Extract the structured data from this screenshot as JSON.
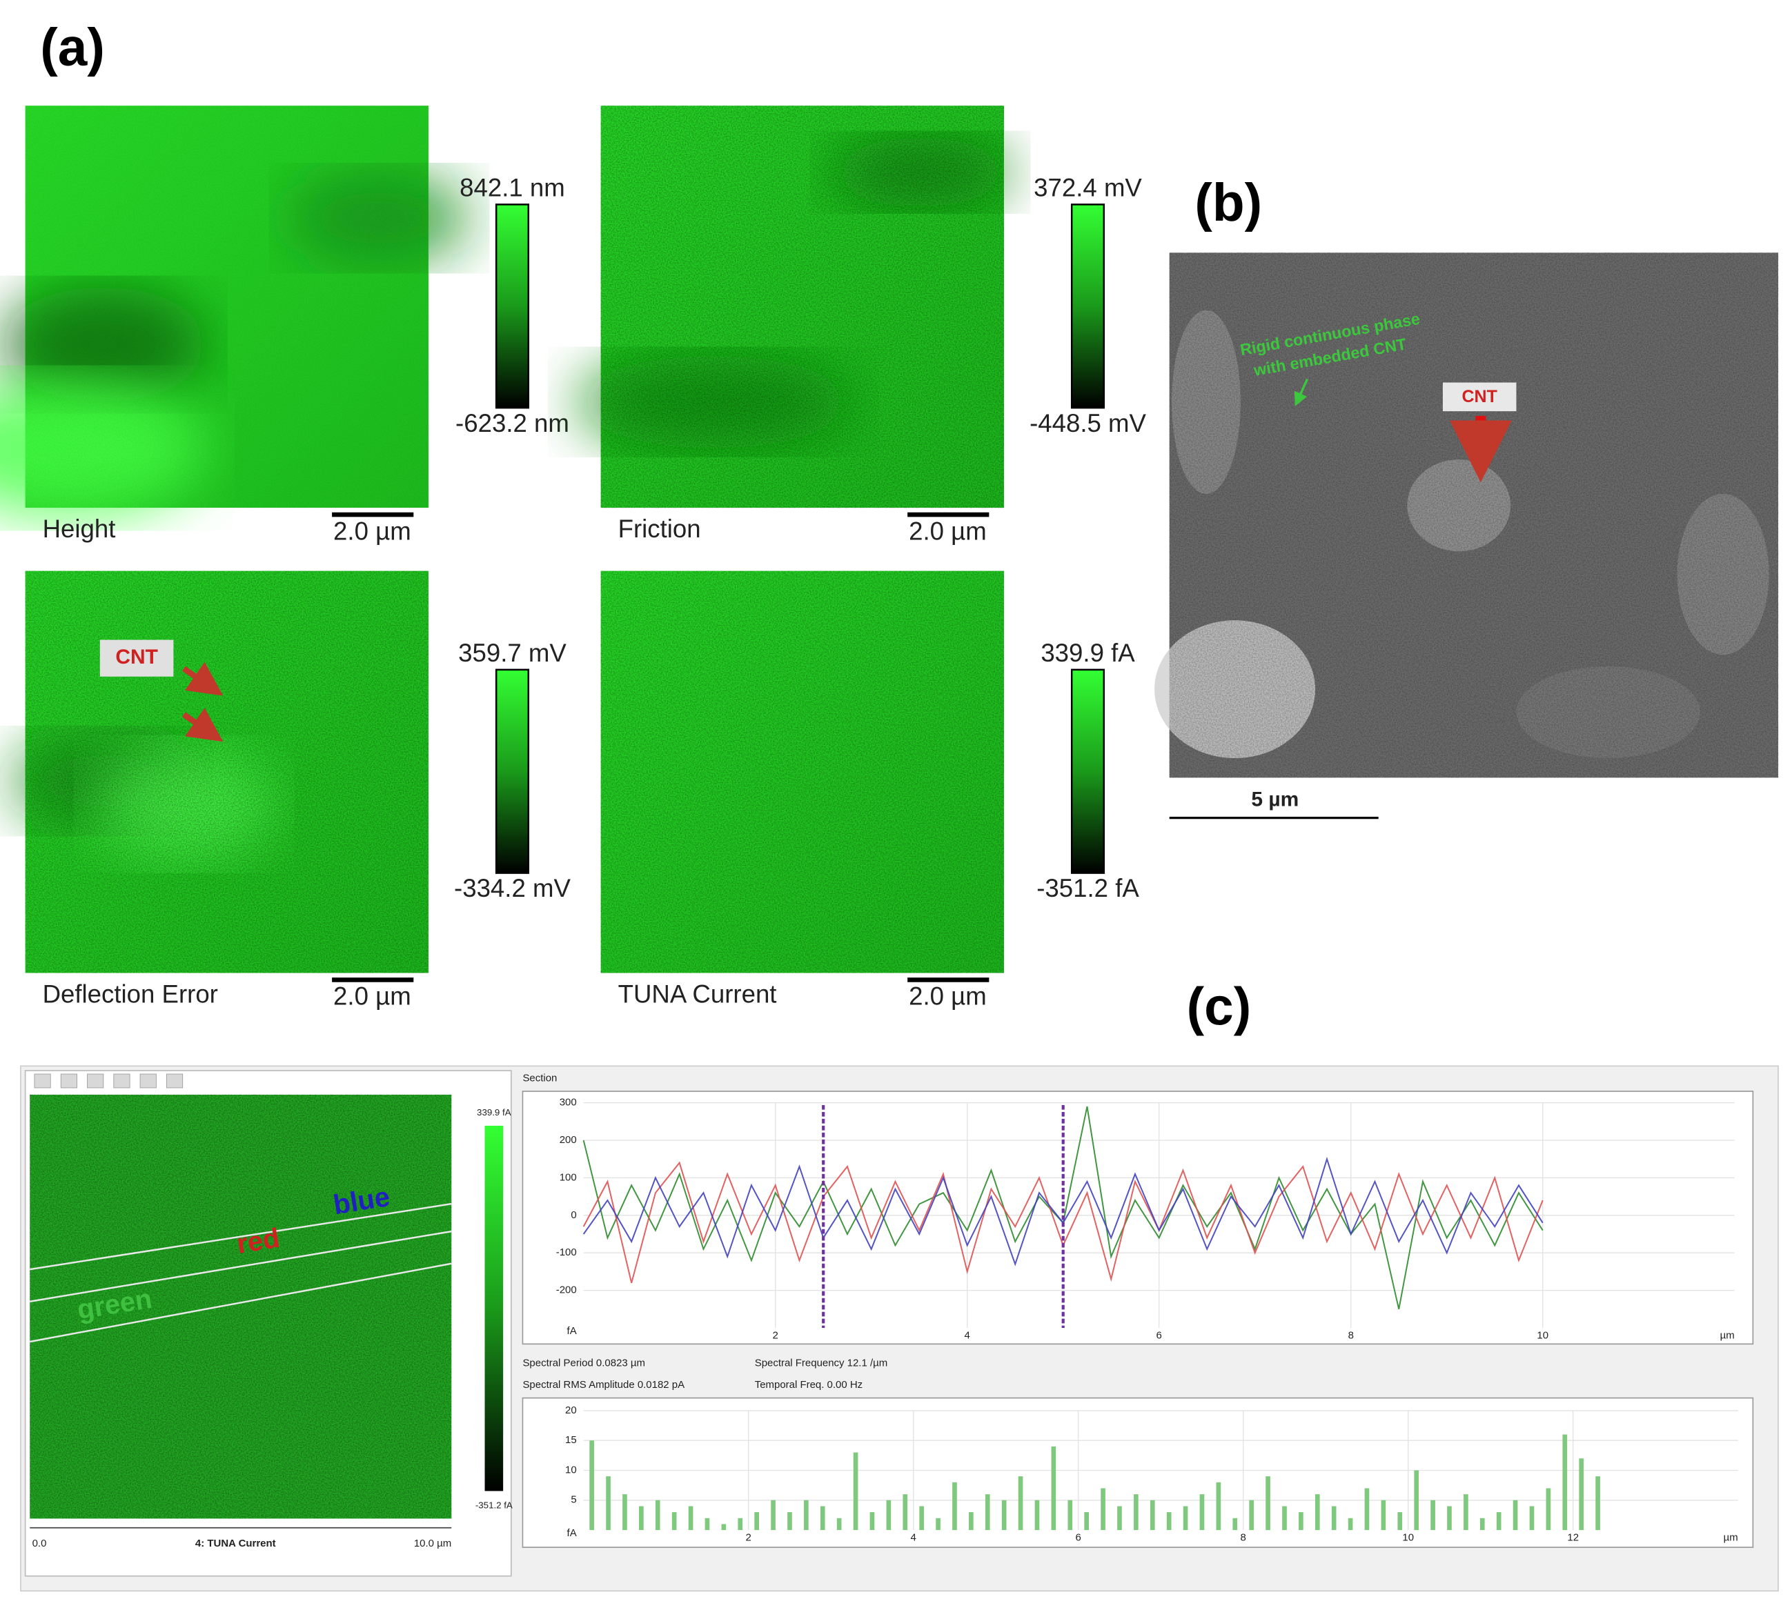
{
  "panel_a": {
    "label": "(a)",
    "images": [
      {
        "name": "Height",
        "max": "842.1 nm",
        "min": "-623.2 nm",
        "scale_bar": "2.0 µm"
      },
      {
        "name": "Friction",
        "max": "372.4 mV",
        "min": "-448.5 mV",
        "scale_bar": "2.0 µm"
      },
      {
        "name": "Deflection Error",
        "max": "359.7 mV",
        "min": "-334.2 mV",
        "scale_bar": "2.0 µm"
      },
      {
        "name": "TUNA Current",
        "max": "339.9 fA",
        "min": "-351.2 fA",
        "scale_bar": "2.0 µm"
      }
    ],
    "annotation": "CNT"
  },
  "panel_b": {
    "label": "(b)",
    "annotation_lines": [
      "Rigid continuous phase",
      "with embedded CNT"
    ],
    "cnt_label": "CNT",
    "scale_bar": "5 µm"
  },
  "panel_c": {
    "label": "(c)",
    "window": {
      "colorbar_max": "339.9 fA",
      "colorbar_min": "-351.2 fA",
      "axis_start": "0.0",
      "title": "4: TUNA Current",
      "axis_end": "10.0 µm",
      "line_labels": [
        "blue",
        "red",
        "green"
      ]
    },
    "section_label": "Section",
    "readouts": [
      "Spectral Period 0.0823 µm",
      "Spectral Frequency 12.1 /µm",
      "Spectral RMS Amplitude 0.0182 pA",
      "Temporal Freq. 0.00 Hz"
    ]
  },
  "chart_data": [
    {
      "type": "line",
      "xlabel": "µm",
      "ylabel": "fA",
      "x": [
        0,
        0.25,
        0.5,
        0.75,
        1,
        1.25,
        1.5,
        1.75,
        2,
        2.25,
        2.5,
        2.75,
        3,
        3.25,
        3.5,
        3.75,
        4,
        4.25,
        4.5,
        4.75,
        5,
        5.25,
        5.5,
        5.75,
        6,
        6.25,
        6.5,
        6.75,
        7,
        7.25,
        7.5,
        7.75,
        8,
        8.25,
        8.5,
        8.75,
        9,
        9.25,
        9.5,
        9.75,
        10
      ],
      "series": [
        {
          "name": "green",
          "color": "#2e8b2e",
          "values": [
            200,
            -60,
            80,
            -40,
            110,
            -90,
            40,
            -120,
            60,
            -30,
            90,
            -50,
            70,
            -80,
            30,
            60,
            -40,
            120,
            -70,
            50,
            -20,
            290,
            -110,
            40,
            -60,
            80,
            -30,
            60,
            -90,
            100,
            -40,
            70,
            -50,
            30,
            -250,
            90,
            -60,
            40,
            -80,
            60,
            -40
          ]
        },
        {
          "name": "red",
          "color": "#e05050",
          "values": [
            -30,
            90,
            -180,
            60,
            140,
            -70,
            110,
            -50,
            80,
            -120,
            50,
            130,
            -60,
            90,
            -40,
            110,
            -150,
            70,
            -30,
            100,
            -80,
            60,
            -170,
            90,
            -40,
            120,
            -60,
            80,
            -100,
            50,
            130,
            -70,
            60,
            -90,
            110,
            -50,
            80,
            -60,
            100,
            -120,
            40
          ]
        },
        {
          "name": "blue",
          "color": "#4040c0",
          "values": [
            -50,
            40,
            -70,
            100,
            -30,
            60,
            -110,
            80,
            -40,
            130,
            -60,
            40,
            -90,
            70,
            -50,
            100,
            -80,
            50,
            -130,
            60,
            -20,
            90,
            -60,
            110,
            -40,
            70,
            -90,
            50,
            -30,
            80,
            -60,
            150,
            -50,
            90,
            -70,
            40,
            -100,
            60,
            -30,
            80,
            -20
          ]
        }
      ],
      "cursors": [
        2.5,
        5.0
      ],
      "cursor_color": "#7030a0",
      "xlim": [
        0,
        12
      ],
      "ylim": [
        -300,
        300
      ],
      "xticks": [
        2,
        4,
        6,
        8,
        10
      ],
      "yticks": [
        -200,
        -100,
        0,
        100,
        200,
        300
      ],
      "grid": true
    },
    {
      "type": "bar",
      "xlabel": "µm",
      "ylabel": "fA",
      "color": "#7fc97f",
      "x": [
        0.1,
        0.3,
        0.5,
        0.7,
        0.9,
        1.1,
        1.3,
        1.5,
        1.7,
        1.9,
        2.1,
        2.3,
        2.5,
        2.7,
        2.9,
        3.1,
        3.3,
        3.5,
        3.7,
        3.9,
        4.1,
        4.3,
        4.5,
        4.7,
        4.9,
        5.1,
        5.3,
        5.5,
        5.7,
        5.9,
        6.1,
        6.3,
        6.5,
        6.7,
        6.9,
        7.1,
        7.3,
        7.5,
        7.7,
        7.9,
        8.1,
        8.3,
        8.5,
        8.7,
        8.9,
        9.1,
        9.3,
        9.5,
        9.7,
        9.9,
        10.1,
        10.3,
        10.5,
        10.7,
        10.9,
        11.1,
        11.3,
        11.5,
        11.7,
        11.9,
        12.1,
        12.3
      ],
      "values": [
        15,
        9,
        6,
        4,
        5,
        3,
        4,
        2,
        1,
        2,
        3,
        5,
        3,
        5,
        4,
        2,
        13,
        3,
        5,
        6,
        4,
        2,
        8,
        3,
        6,
        5,
        9,
        5,
        14,
        5,
        3,
        7,
        4,
        6,
        5,
        3,
        4,
        6,
        8,
        2,
        5,
        9,
        4,
        3,
        6,
        4,
        2,
        7,
        5,
        3,
        10,
        5,
        4,
        6,
        2,
        3,
        5,
        4,
        7,
        16,
        12,
        9
      ],
      "xlim": [
        0,
        14
      ],
      "ylim": [
        0,
        20
      ],
      "xticks": [
        2,
        4,
        6,
        8,
        10,
        12
      ],
      "yticks": [
        5,
        10,
        15,
        20
      ],
      "grid": true
    }
  ]
}
